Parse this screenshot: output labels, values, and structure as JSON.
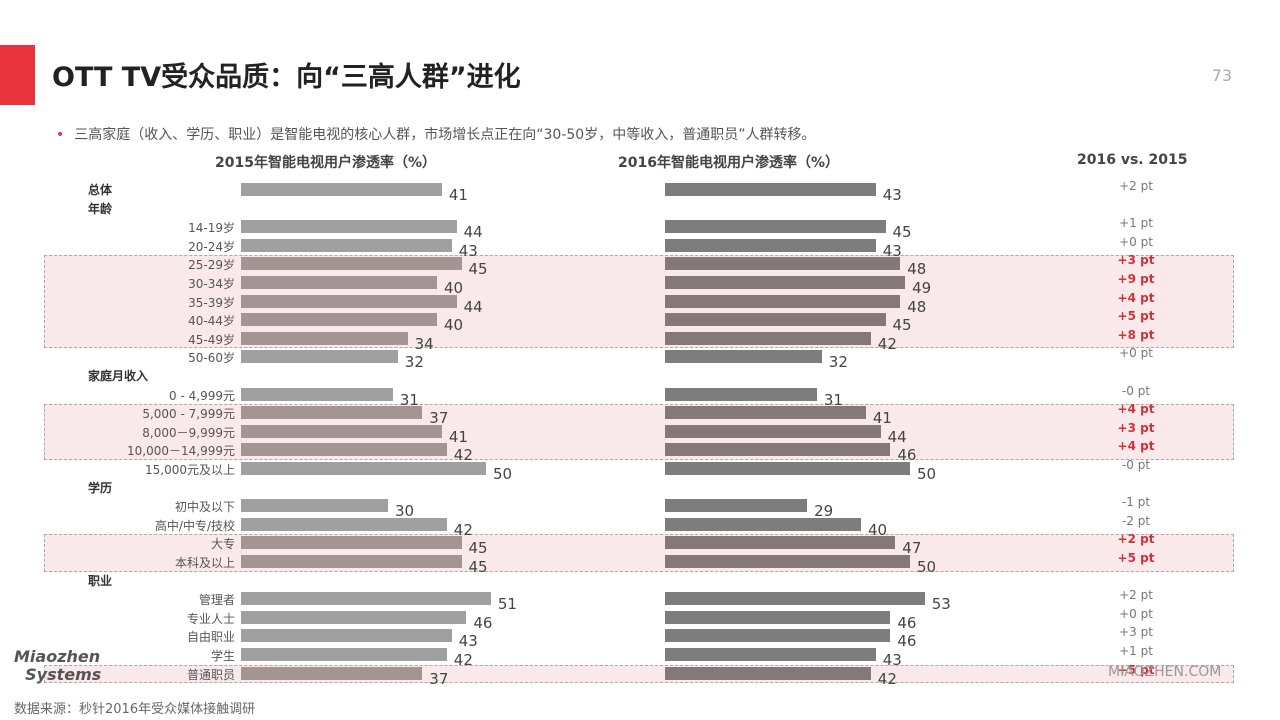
{
  "title": "OTT TV受众品质：向“三高人群”进化",
  "page_number": "73",
  "bullet": "三高家庭（收入、学历、职业）是智能电视的核心人群，市场增长点正在向“30-50岁，中等收入，普通职员”人群转移。",
  "footer_source": "数据来源：秒针2016年受众媒体接触调研",
  "logo_text": "Miaozhen Systems",
  "watermark": "MIAOZHEN.COM",
  "colors": {
    "accent": "#e8343a",
    "bar_2015": "#a0a0a0",
    "bar_2016": "#7d7d7d",
    "highlight_bg": "#f9e9ea",
    "positive_diff": "#d0343a"
  },
  "chart_data": {
    "type": "bar",
    "orientation": "horizontal",
    "title_2015": "2015年智能电视用户渗透率（%）",
    "title_2016": "2016年智能电视用户渗透率（%）",
    "diff_header": "2016 vs. 2015",
    "sections": [
      {
        "label": "总体",
        "rows": [
          {
            "category": "",
            "v2015": 41,
            "v2016": 43,
            "diff": "+2 pt",
            "highlight": false
          }
        ]
      },
      {
        "label": "年龄",
        "rows": [
          {
            "category": "14-19岁",
            "v2015": 44,
            "v2016": 45,
            "diff": "+1 pt",
            "highlight": false
          },
          {
            "category": "20-24岁",
            "v2015": 43,
            "v2016": 43,
            "diff": "+0 pt",
            "highlight": false
          },
          {
            "category": "25-29岁",
            "v2015": 45,
            "v2016": 48,
            "diff": "+3 pt",
            "highlight": true
          },
          {
            "category": "30-34岁",
            "v2015": 40,
            "v2016": 49,
            "diff": "+9 pt",
            "highlight": true
          },
          {
            "category": "35-39岁",
            "v2015": 44,
            "v2016": 48,
            "diff": "+4 pt",
            "highlight": true
          },
          {
            "category": "40-44岁",
            "v2015": 40,
            "v2016": 45,
            "diff": "+5 pt",
            "highlight": true
          },
          {
            "category": "45-49岁",
            "v2015": 34,
            "v2016": 42,
            "diff": "+8 pt",
            "highlight": true
          },
          {
            "category": "50-60岁",
            "v2015": 32,
            "v2016": 32,
            "diff": "+0 pt",
            "highlight": false
          }
        ]
      },
      {
        "label": "家庭月收入",
        "rows": [
          {
            "category": "0 - 4,999元",
            "v2015": 31,
            "v2016": 31,
            "diff": "-0 pt",
            "highlight": false
          },
          {
            "category": "5,000 - 7,999元",
            "v2015": 37,
            "v2016": 41,
            "diff": "+4 pt",
            "highlight": true
          },
          {
            "category": "8,000－9,999元",
            "v2015": 41,
            "v2016": 44,
            "diff": "+3 pt",
            "highlight": true
          },
          {
            "category": "10,000－14,999元",
            "v2015": 42,
            "v2016": 46,
            "diff": "+4 pt",
            "highlight": true
          },
          {
            "category": "15,000元及以上",
            "v2015": 50,
            "v2016": 50,
            "diff": "-0 pt",
            "highlight": false
          }
        ]
      },
      {
        "label": "学历",
        "rows": [
          {
            "category": "初中及以下",
            "v2015": 30,
            "v2016": 29,
            "diff": "-1 pt",
            "highlight": false
          },
          {
            "category": "高中/中专/技校",
            "v2015": 42,
            "v2016": 40,
            "diff": "-2 pt",
            "highlight": false
          },
          {
            "category": "大专",
            "v2015": 45,
            "v2016": 47,
            "diff": "+2 pt",
            "highlight": true
          },
          {
            "category": "本科及以上",
            "v2015": 45,
            "v2016": 50,
            "diff": "+5 pt",
            "highlight": true
          }
        ]
      },
      {
        "label": "职业",
        "rows": [
          {
            "category": "管理者",
            "v2015": 51,
            "v2016": 53,
            "diff": "+2 pt",
            "highlight": false
          },
          {
            "category": "专业人士",
            "v2015": 46,
            "v2016": 46,
            "diff": "+0 pt",
            "highlight": false
          },
          {
            "category": "自由职业",
            "v2015": 43,
            "v2016": 46,
            "diff": "+3 pt",
            "highlight": false
          },
          {
            "category": "学生",
            "v2015": 42,
            "v2016": 43,
            "diff": "+1 pt",
            "highlight": false
          },
          {
            "category": "普通职员",
            "v2015": 37,
            "v2016": 42,
            "diff": "+5 pt",
            "highlight": true
          }
        ]
      }
    ]
  }
}
